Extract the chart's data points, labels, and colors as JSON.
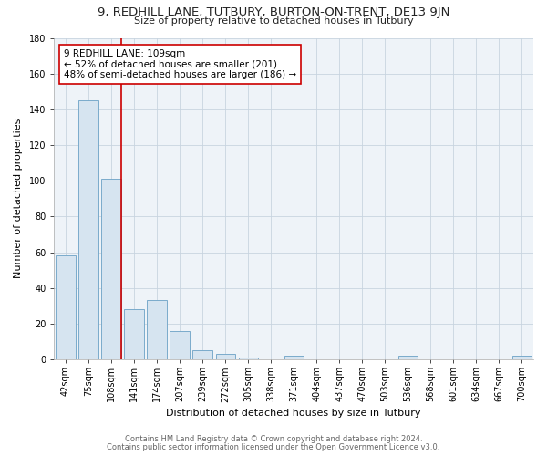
{
  "title": "9, REDHILL LANE, TUTBURY, BURTON-ON-TRENT, DE13 9JN",
  "subtitle": "Size of property relative to detached houses in Tutbury",
  "xlabel": "Distribution of detached houses by size in Tutbury",
  "ylabel": "Number of detached properties",
  "bar_labels": [
    "42sqm",
    "75sqm",
    "108sqm",
    "141sqm",
    "174sqm",
    "207sqm",
    "239sqm",
    "272sqm",
    "305sqm",
    "338sqm",
    "371sqm",
    "404sqm",
    "437sqm",
    "470sqm",
    "503sqm",
    "536sqm",
    "568sqm",
    "601sqm",
    "634sqm",
    "667sqm",
    "700sqm"
  ],
  "bar_values": [
    58,
    145,
    101,
    28,
    33,
    16,
    5,
    3,
    1,
    0,
    2,
    0,
    0,
    0,
    0,
    2,
    0,
    0,
    0,
    0,
    2
  ],
  "bar_color": "#d6e4f0",
  "bar_edge_color": "#7aaacb",
  "ylim": [
    0,
    180
  ],
  "yticks": [
    0,
    20,
    40,
    60,
    80,
    100,
    120,
    140,
    160,
    180
  ],
  "red_line_index": 2,
  "annotation_line1": "9 REDHILL LANE: 109sqm",
  "annotation_line2": "← 52% of detached houses are smaller (201)",
  "annotation_line3": "48% of semi-detached houses are larger (186) →",
  "annotation_box_color": "#ffffff",
  "annotation_box_edge_color": "#cc0000",
  "footer_line1": "Contains HM Land Registry data © Crown copyright and database right 2024.",
  "footer_line2": "Contains public sector information licensed under the Open Government Licence v3.0.",
  "fig_bg_color": "#ffffff",
  "plot_bg_color": "#eef3f8",
  "grid_color": "#c8d4e0",
  "title_fontsize": 9.5,
  "subtitle_fontsize": 8,
  "axis_label_fontsize": 8,
  "tick_fontsize": 7,
  "footer_fontsize": 6,
  "annotation_fontsize": 7.5
}
